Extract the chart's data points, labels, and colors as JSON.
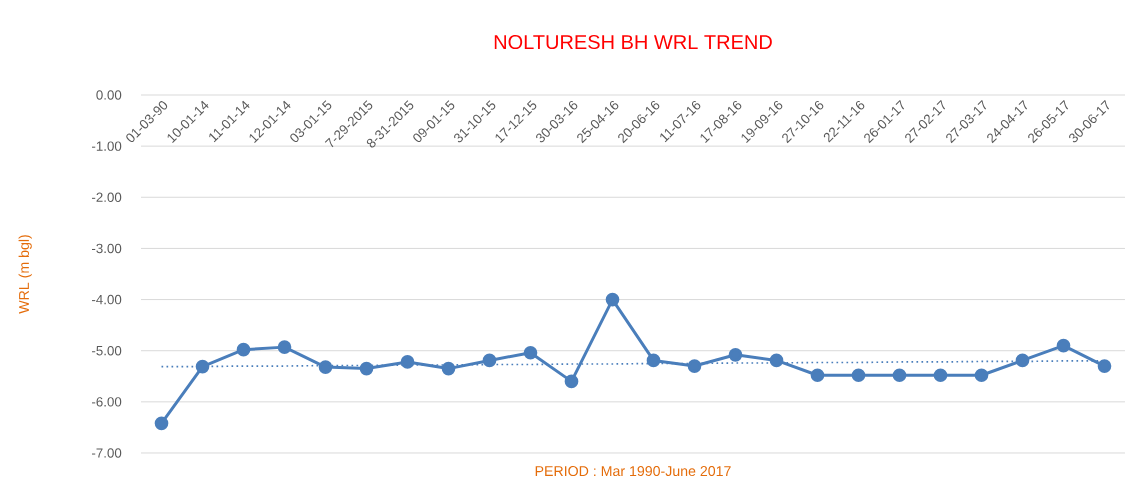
{
  "chart_data": {
    "type": "line",
    "title": "NOLTURESH BH WRL TREND",
    "xlabel": "PERIOD : Mar 1990-June 2017",
    "ylabel": "WRL (m bgl)",
    "categories": [
      "01-03-90",
      "10-01-14",
      "11-01-14",
      "12-01-14",
      "03-01-15",
      "7-29-2015",
      "8-31-2015",
      "09-01-15",
      "31-10-15",
      "17-12-15",
      "30-03-16",
      "25-04-16",
      "20-06-16",
      "11-07-16",
      "17-08-16",
      "19-09-16",
      "27-10-16",
      "22-11-16",
      "26-01-17",
      "27-02-17",
      "27-03-17",
      "24-04-17",
      "26-05-17",
      "30-06-17"
    ],
    "series": [
      {
        "color": "#4a7ebb",
        "values": [
          -6.42,
          -5.31,
          -4.98,
          -4.93,
          -5.32,
          -5.35,
          -5.22,
          -5.35,
          -5.19,
          -5.04,
          -5.6,
          -4.0,
          -5.19,
          -5.3,
          -5.08,
          -5.19,
          -5.48,
          -5.48,
          -5.48,
          -5.48,
          -5.48,
          -5.19,
          -4.9,
          -5.3
        ]
      },
      {
        "color": "#4a7ebb",
        "marker": "none",
        "line_style": "dotted",
        "values": [
          -5.31,
          -5.31,
          -5.3,
          -5.3,
          -5.29,
          -5.29,
          -5.28,
          -5.28,
          -5.27,
          -5.27,
          -5.26,
          -5.26,
          -5.25,
          -5.25,
          -5.24,
          -5.24,
          -5.23,
          -5.23,
          -5.22,
          -5.22,
          -5.21,
          -5.21,
          -5.2,
          -5.2
        ]
      }
    ],
    "ylim": [
      -7,
      0
    ],
    "yticks": [
      {
        "value": 0,
        "label": "0.00"
      },
      {
        "value": -1,
        "label": "-1.00"
      },
      {
        "value": -2,
        "label": "-2.00"
      },
      {
        "value": -3,
        "label": "-3.00"
      },
      {
        "value": -4,
        "label": "-4.00"
      },
      {
        "value": -5,
        "label": "-5.00"
      },
      {
        "value": -6,
        "label": "-6.00"
      },
      {
        "value": -7,
        "label": "-7.00"
      }
    ],
    "grid": "y",
    "legend": false,
    "marker": "circle",
    "line_style": "solid"
  }
}
